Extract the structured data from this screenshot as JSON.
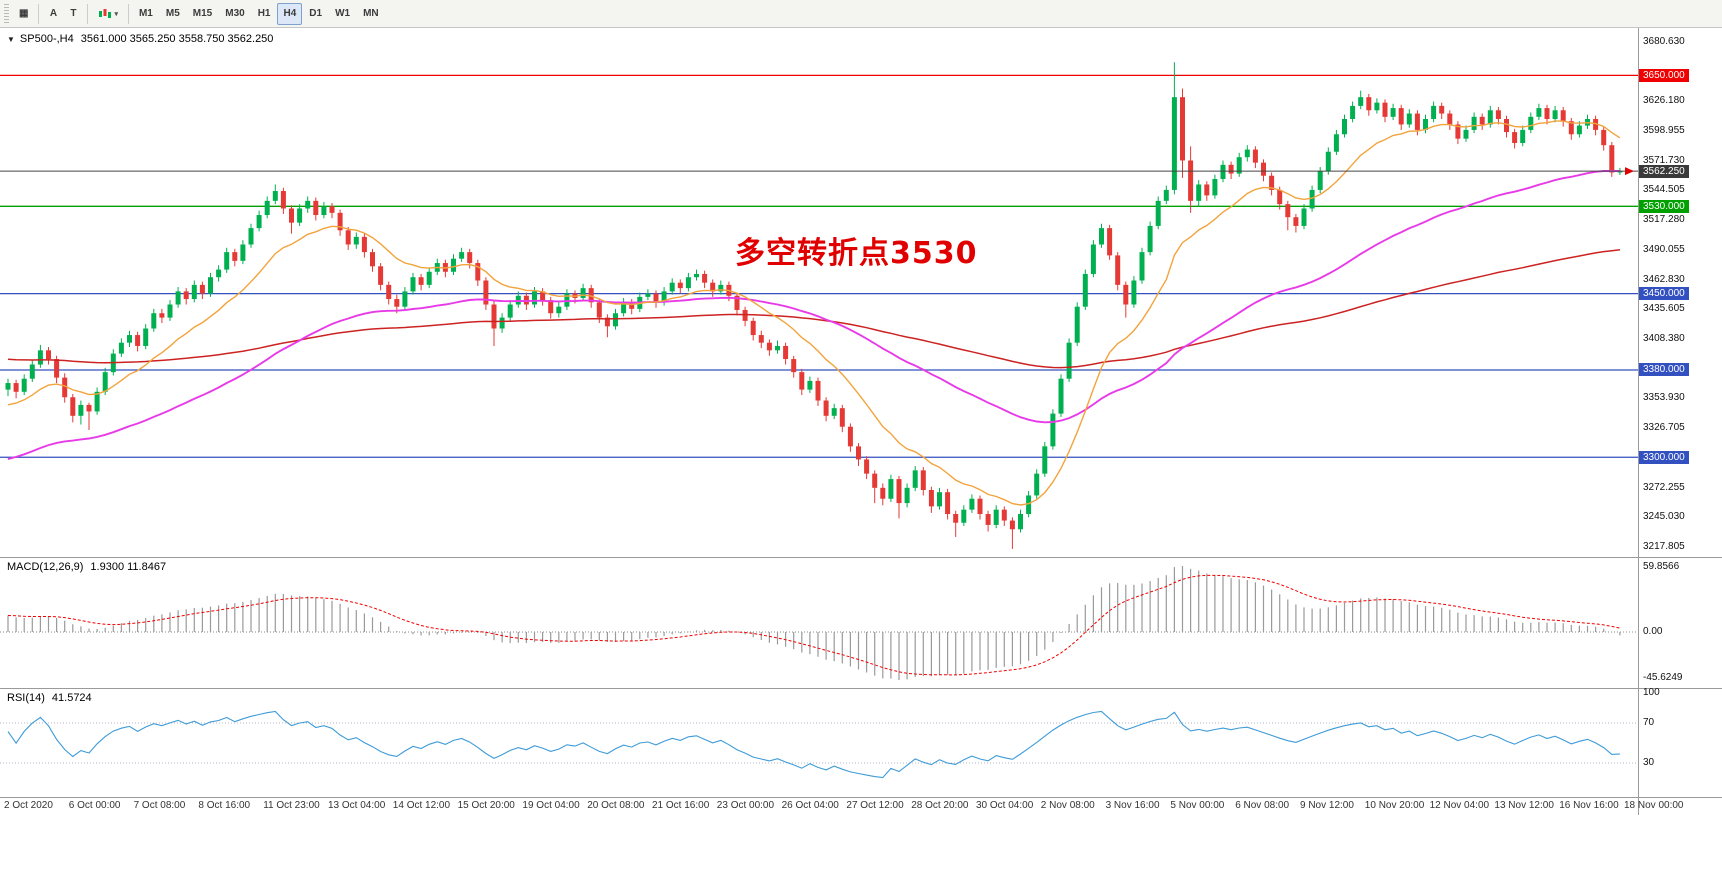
{
  "toolbar": {
    "grid_icon": "▦",
    "tool_a": "A",
    "tool_t": "T",
    "period_caret": "▾",
    "timeframes": [
      {
        "label": "M1",
        "active": false
      },
      {
        "label": "M5",
        "active": false
      },
      {
        "label": "M15",
        "active": false
      },
      {
        "label": "M30",
        "active": false
      },
      {
        "label": "H1",
        "active": false
      },
      {
        "label": "H4",
        "active": true
      },
      {
        "label": "D1",
        "active": false
      },
      {
        "label": "W1",
        "active": false
      },
      {
        "label": "MN",
        "active": false
      }
    ]
  },
  "colors": {
    "bull": "#00b050",
    "bear": "#e53935",
    "ma_fast": "#f2a33c",
    "ma_mid": "#e83be8",
    "ma_slow": "#cc2222",
    "rsi_line": "#3e9bd8",
    "macd_hist": "#9a9a9a",
    "macd_signal": "#f00000",
    "price_line": "#444444",
    "price_badge_bg": "#3a3a3a",
    "hline_red": "#f00000",
    "hline_green": "#00a000",
    "hline_blue": "#3350c0",
    "annotation": "#e10000"
  },
  "chart_data": {
    "type": "candlestick",
    "symbol_header": {
      "collapse_icon": "▼",
      "symbol": "SP500-,H4",
      "ohlc": "3561.000 3565.250 3558.750 3562.250"
    },
    "current_bar": {
      "open": 3561.0,
      "high": 3565.25,
      "low": 3558.75,
      "close": 3562.25
    },
    "current_price": {
      "value": 3562.25,
      "label": "3562.250"
    },
    "hlines": [
      {
        "price": 3650.0,
        "label": "3650.000",
        "color": "#f00000"
      },
      {
        "price": 3530.0,
        "label": "3530.000",
        "color": "#00a000"
      },
      {
        "price": 3450.0,
        "label": "3450.000",
        "color": "#3350c0"
      },
      {
        "price": 3380.0,
        "label": "3380.000",
        "color": "#3350c0"
      },
      {
        "price": 3300.0,
        "label": "3300.000",
        "color": "#3350c0"
      }
    ],
    "annotation": {
      "text": "多空转折点3530",
      "color": "#e10000"
    },
    "price_axis_ticks": [
      3680.63,
      3626.18,
      3598.955,
      3571.73,
      3544.505,
      3517.28,
      3490.055,
      3462.83,
      3435.605,
      3408.38,
      3353.93,
      3326.705,
      3272.255,
      3245.03,
      3217.805
    ],
    "x_labels": [
      "2 Oct 2020",
      "6 Oct 00:00",
      "7 Oct 08:00",
      "8 Oct 16:00",
      "11 Oct 23:00",
      "13 Oct 04:00",
      "14 Oct 12:00",
      "15 Oct 20:00",
      "19 Oct 04:00",
      "20 Oct 08:00",
      "21 Oct 16:00",
      "23 Oct 00:00",
      "26 Oct 04:00",
      "27 Oct 12:00",
      "28 Oct 20:00",
      "30 Oct 04:00",
      "2 Nov 08:00",
      "3 Nov 16:00",
      "5 Nov 00:00",
      "6 Nov 08:00",
      "9 Nov 12:00",
      "10 Nov 20:00",
      "12 Nov 04:00",
      "13 Nov 12:00",
      "16 Nov 16:00",
      "18 Nov 00:00"
    ],
    "macd": {
      "title": "MACD(12,26,9)",
      "values_text": "1.9300 11.8467",
      "axis_labels": [
        "59.8566",
        "0.00",
        "-45.6249"
      ]
    },
    "rsi": {
      "title": "RSI(14)",
      "value_text": "41.5724",
      "levels": [
        70,
        30
      ],
      "axis_labels": [
        100,
        70,
        30
      ]
    },
    "candles_ohlc": [
      [
        3362,
        3372,
        3356,
        3368
      ],
      [
        3368,
        3371,
        3354,
        3360
      ],
      [
        3360,
        3376,
        3357,
        3372
      ],
      [
        3372,
        3389,
        3369,
        3385
      ],
      [
        3385,
        3403,
        3382,
        3398
      ],
      [
        3398,
        3401,
        3385,
        3390
      ],
      [
        3390,
        3393,
        3368,
        3373
      ],
      [
        3373,
        3377,
        3350,
        3355
      ],
      [
        3355,
        3358,
        3332,
        3338
      ],
      [
        3338,
        3352,
        3330,
        3348
      ],
      [
        3348,
        3350,
        3325,
        3342
      ],
      [
        3342,
        3364,
        3339,
        3360
      ],
      [
        3360,
        3382,
        3357,
        3378
      ],
      [
        3378,
        3399,
        3375,
        3395
      ],
      [
        3395,
        3409,
        3392,
        3405
      ],
      [
        3405,
        3416,
        3401,
        3412
      ],
      [
        3412,
        3415,
        3397,
        3402
      ],
      [
        3402,
        3422,
        3399,
        3418
      ],
      [
        3418,
        3436,
        3415,
        3432
      ],
      [
        3432,
        3436,
        3423,
        3428
      ],
      [
        3428,
        3444,
        3425,
        3440
      ],
      [
        3440,
        3456,
        3437,
        3452
      ],
      [
        3452,
        3455,
        3440,
        3445
      ],
      [
        3445,
        3462,
        3442,
        3458
      ],
      [
        3458,
        3461,
        3445,
        3450
      ],
      [
        3450,
        3469,
        3447,
        3465
      ],
      [
        3465,
        3476,
        3461,
        3472
      ],
      [
        3472,
        3492,
        3469,
        3488
      ],
      [
        3488,
        3491,
        3475,
        3480
      ],
      [
        3480,
        3499,
        3477,
        3495
      ],
      [
        3495,
        3514,
        3492,
        3510
      ],
      [
        3510,
        3526,
        3507,
        3522
      ],
      [
        3522,
        3539,
        3519,
        3535
      ],
      [
        3535,
        3550,
        3532,
        3544
      ],
      [
        3544,
        3547,
        3523,
        3528
      ],
      [
        3528,
        3531,
        3505,
        3515
      ],
      [
        3515,
        3532,
        3512,
        3528
      ],
      [
        3528,
        3539,
        3524,
        3535
      ],
      [
        3535,
        3538,
        3517,
        3522
      ],
      [
        3522,
        3534,
        3519,
        3530
      ],
      [
        3530,
        3533,
        3519,
        3524
      ],
      [
        3524,
        3527,
        3503,
        3508
      ],
      [
        3508,
        3511,
        3490,
        3495
      ],
      [
        3495,
        3506,
        3491,
        3502
      ],
      [
        3502,
        3505,
        3483,
        3488
      ],
      [
        3488,
        3491,
        3470,
        3475
      ],
      [
        3475,
        3478,
        3453,
        3458
      ],
      [
        3458,
        3461,
        3440,
        3445
      ],
      [
        3445,
        3449,
        3432,
        3438
      ],
      [
        3438,
        3456,
        3435,
        3452
      ],
      [
        3452,
        3469,
        3449,
        3465
      ],
      [
        3465,
        3468,
        3453,
        3458
      ],
      [
        3458,
        3474,
        3455,
        3470
      ],
      [
        3470,
        3482,
        3467,
        3478
      ],
      [
        3478,
        3481,
        3465,
        3470
      ],
      [
        3470,
        3486,
        3467,
        3482
      ],
      [
        3482,
        3492,
        3479,
        3488
      ],
      [
        3488,
        3491,
        3473,
        3478
      ],
      [
        3478,
        3481,
        3457,
        3462
      ],
      [
        3462,
        3465,
        3435,
        3440
      ],
      [
        3440,
        3443,
        3402,
        3418
      ],
      [
        3418,
        3432,
        3414,
        3428
      ],
      [
        3428,
        3444,
        3425,
        3440
      ],
      [
        3440,
        3452,
        3437,
        3448
      ],
      [
        3448,
        3451,
        3435,
        3440
      ],
      [
        3440,
        3456,
        3437,
        3452
      ],
      [
        3452,
        3455,
        3439,
        3444
      ],
      [
        3444,
        3447,
        3427,
        3432
      ],
      [
        3432,
        3442,
        3428,
        3438
      ],
      [
        3438,
        3454,
        3435,
        3450
      ],
      [
        3450,
        3453,
        3441,
        3446
      ],
      [
        3446,
        3459,
        3443,
        3455
      ],
      [
        3455,
        3458,
        3437,
        3442
      ],
      [
        3442,
        3445,
        3423,
        3428
      ],
      [
        3428,
        3431,
        3410,
        3420
      ],
      [
        3420,
        3436,
        3417,
        3432
      ],
      [
        3432,
        3446,
        3429,
        3442
      ],
      [
        3442,
        3445,
        3431,
        3436
      ],
      [
        3436,
        3451,
        3433,
        3447
      ],
      [
        3447,
        3454,
        3444,
        3450
      ],
      [
        3450,
        3453,
        3437,
        3442
      ],
      [
        3442,
        3456,
        3439,
        3452
      ],
      [
        3452,
        3464,
        3449,
        3460
      ],
      [
        3460,
        3463,
        3450,
        3455
      ],
      [
        3455,
        3469,
        3452,
        3465
      ],
      [
        3465,
        3472,
        3462,
        3468
      ],
      [
        3468,
        3471,
        3455,
        3460
      ],
      [
        3460,
        3463,
        3447,
        3452
      ],
      [
        3452,
        3462,
        3449,
        3458
      ],
      [
        3458,
        3461,
        3443,
        3448
      ],
      [
        3448,
        3451,
        3430,
        3435
      ],
      [
        3435,
        3438,
        3420,
        3425
      ],
      [
        3425,
        3428,
        3407,
        3412
      ],
      [
        3412,
        3416,
        3400,
        3405
      ],
      [
        3405,
        3408,
        3393,
        3398
      ],
      [
        3398,
        3407,
        3395,
        3402
      ],
      [
        3402,
        3405,
        3385,
        3390
      ],
      [
        3390,
        3393,
        3373,
        3378
      ],
      [
        3378,
        3381,
        3357,
        3362
      ],
      [
        3362,
        3374,
        3359,
        3370
      ],
      [
        3370,
        3373,
        3347,
        3352
      ],
      [
        3352,
        3355,
        3333,
        3338
      ],
      [
        3338,
        3349,
        3335,
        3345
      ],
      [
        3345,
        3348,
        3323,
        3328
      ],
      [
        3328,
        3331,
        3305,
        3310
      ],
      [
        3310,
        3313,
        3292,
        3298
      ],
      [
        3298,
        3301,
        3280,
        3285
      ],
      [
        3285,
        3288,
        3258,
        3272
      ],
      [
        3272,
        3276,
        3256,
        3262
      ],
      [
        3262,
        3284,
        3259,
        3280
      ],
      [
        3280,
        3283,
        3244,
        3258
      ],
      [
        3258,
        3276,
        3254,
        3272
      ],
      [
        3272,
        3292,
        3269,
        3288
      ],
      [
        3288,
        3291,
        3265,
        3270
      ],
      [
        3270,
        3273,
        3249,
        3255
      ],
      [
        3255,
        3272,
        3252,
        3268
      ],
      [
        3268,
        3271,
        3243,
        3248
      ],
      [
        3248,
        3251,
        3227,
        3240
      ],
      [
        3240,
        3256,
        3237,
        3252
      ],
      [
        3252,
        3266,
        3249,
        3262
      ],
      [
        3262,
        3265,
        3243,
        3248
      ],
      [
        3248,
        3251,
        3232,
        3238
      ],
      [
        3238,
        3256,
        3235,
        3252
      ],
      [
        3252,
        3255,
        3237,
        3242
      ],
      [
        3242,
        3245,
        3216,
        3234
      ],
      [
        3234,
        3252,
        3231,
        3248
      ],
      [
        3248,
        3269,
        3245,
        3265
      ],
      [
        3265,
        3289,
        3262,
        3285
      ],
      [
        3285,
        3314,
        3282,
        3310
      ],
      [
        3310,
        3344,
        3307,
        3340
      ],
      [
        3340,
        3376,
        3337,
        3372
      ],
      [
        3372,
        3409,
        3369,
        3405
      ],
      [
        3405,
        3442,
        3402,
        3438
      ],
      [
        3438,
        3472,
        3435,
        3468
      ],
      [
        3468,
        3499,
        3465,
        3495
      ],
      [
        3495,
        3514,
        3492,
        3510
      ],
      [
        3510,
        3513,
        3481,
        3485
      ],
      [
        3485,
        3488,
        3453,
        3458
      ],
      [
        3458,
        3461,
        3428,
        3440
      ],
      [
        3440,
        3466,
        3437,
        3462
      ],
      [
        3462,
        3492,
        3459,
        3488
      ],
      [
        3488,
        3516,
        3485,
        3512
      ],
      [
        3512,
        3539,
        3509,
        3535
      ],
      [
        3535,
        3549,
        3532,
        3545
      ],
      [
        3545,
        3662,
        3541,
        3630
      ],
      [
        3630,
        3638,
        3556,
        3572
      ],
      [
        3572,
        3585,
        3524,
        3535
      ],
      [
        3535,
        3554,
        3530,
        3550
      ],
      [
        3550,
        3553,
        3535,
        3540
      ],
      [
        3540,
        3559,
        3537,
        3555
      ],
      [
        3555,
        3572,
        3552,
        3568
      ],
      [
        3568,
        3571,
        3555,
        3560
      ],
      [
        3560,
        3579,
        3557,
        3575
      ],
      [
        3575,
        3586,
        3571,
        3582
      ],
      [
        3582,
        3585,
        3565,
        3570
      ],
      [
        3570,
        3573,
        3553,
        3558
      ],
      [
        3558,
        3561,
        3540,
        3545
      ],
      [
        3545,
        3548,
        3527,
        3532
      ],
      [
        3532,
        3535,
        3508,
        3520
      ],
      [
        3520,
        3523,
        3506,
        3512
      ],
      [
        3512,
        3532,
        3509,
        3528
      ],
      [
        3528,
        3549,
        3525,
        3545
      ],
      [
        3545,
        3566,
        3542,
        3562
      ],
      [
        3562,
        3584,
        3559,
        3580
      ],
      [
        3580,
        3600,
        3577,
        3596
      ],
      [
        3596,
        3614,
        3593,
        3610
      ],
      [
        3610,
        3626,
        3607,
        3622
      ],
      [
        3622,
        3636,
        3619,
        3630
      ],
      [
        3630,
        3633,
        3613,
        3618
      ],
      [
        3618,
        3629,
        3615,
        3625
      ],
      [
        3625,
        3628,
        3607,
        3612
      ],
      [
        3612,
        3624,
        3609,
        3620
      ],
      [
        3620,
        3623,
        3600,
        3605
      ],
      [
        3605,
        3619,
        3602,
        3615
      ],
      [
        3615,
        3618,
        3595,
        3600
      ],
      [
        3600,
        3614,
        3597,
        3610
      ],
      [
        3610,
        3626,
        3607,
        3622
      ],
      [
        3622,
        3625,
        3610,
        3615
      ],
      [
        3615,
        3618,
        3600,
        3605
      ],
      [
        3605,
        3608,
        3587,
        3592
      ],
      [
        3592,
        3604,
        3589,
        3600
      ],
      [
        3600,
        3616,
        3597,
        3612
      ],
      [
        3612,
        3615,
        3600,
        3605
      ],
      [
        3605,
        3622,
        3602,
        3618
      ],
      [
        3618,
        3621,
        3605,
        3610
      ],
      [
        3610,
        3613,
        3593,
        3598
      ],
      [
        3598,
        3601,
        3583,
        3588
      ],
      [
        3588,
        3604,
        3585,
        3600
      ],
      [
        3600,
        3616,
        3597,
        3612
      ],
      [
        3612,
        3624,
        3609,
        3620
      ],
      [
        3620,
        3623,
        3605,
        3610
      ],
      [
        3610,
        3622,
        3607,
        3618
      ],
      [
        3618,
        3621,
        3603,
        3608
      ],
      [
        3608,
        3611,
        3591,
        3596
      ],
      [
        3596,
        3608,
        3593,
        3604
      ],
      [
        3604,
        3614,
        3601,
        3610
      ],
      [
        3610,
        3613,
        3595,
        3600
      ],
      [
        3600,
        3603,
        3581,
        3586
      ],
      [
        3586,
        3589,
        3557,
        3561
      ],
      [
        3561,
        3565.25,
        3558.75,
        3562.25
      ]
    ]
  }
}
